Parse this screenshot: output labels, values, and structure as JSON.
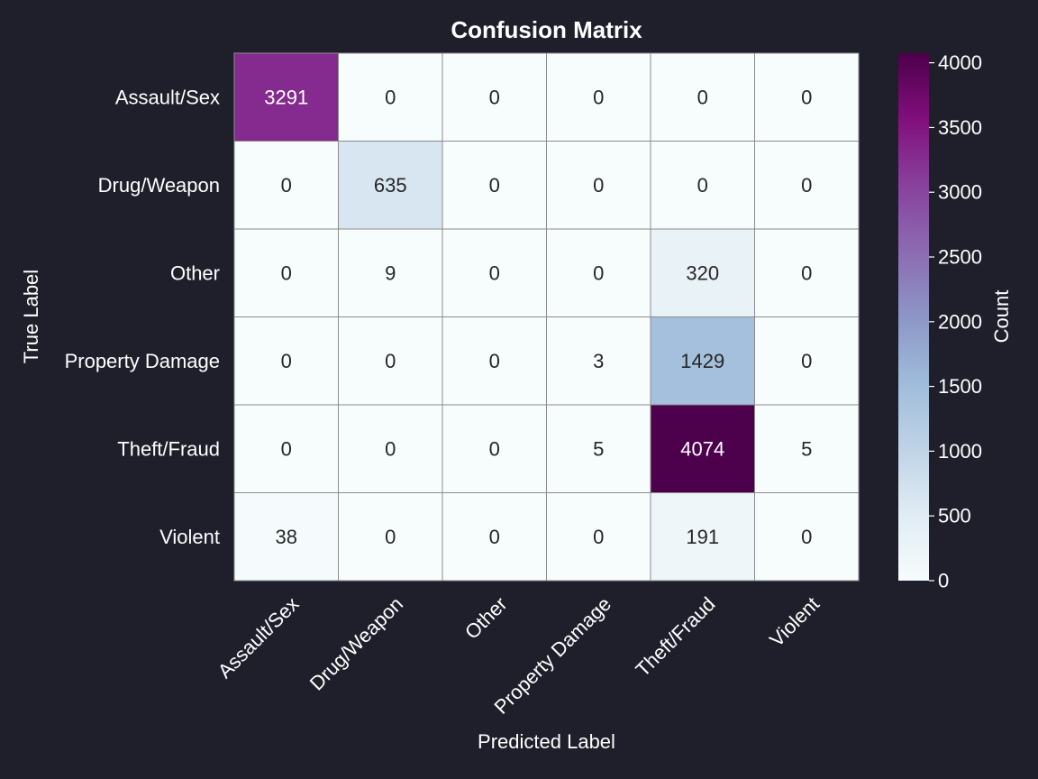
{
  "chart_data": {
    "type": "heatmap",
    "title": "Confusion Matrix",
    "xlabel": "Predicted Label",
    "ylabel": "True Label",
    "x_categories": [
      "Assault/Sex",
      "Drug/Weapon",
      "Other",
      "Property Damage",
      "Theft/Fraud",
      "Violent"
    ],
    "y_categories": [
      "Assault/Sex",
      "Drug/Weapon",
      "Other",
      "Property Damage",
      "Theft/Fraud",
      "Violent"
    ],
    "values": [
      [
        3291,
        0,
        0,
        0,
        0,
        0
      ],
      [
        0,
        635,
        0,
        0,
        0,
        0
      ],
      [
        0,
        9,
        0,
        0,
        320,
        0
      ],
      [
        0,
        0,
        0,
        3,
        1429,
        0
      ],
      [
        0,
        0,
        0,
        5,
        4074,
        5
      ],
      [
        38,
        0,
        0,
        0,
        191,
        0
      ]
    ],
    "colorbar": {
      "label": "Count",
      "range": [
        0,
        4074
      ],
      "ticks": [
        0,
        500,
        1000,
        1500,
        2000,
        2500,
        3000,
        3500,
        4000
      ],
      "colormap": "BuPu"
    },
    "colors": {
      "background": "#1f1f2c",
      "text_light": "#ffffff",
      "text_dark": "#262626",
      "cell_border": "#8c8c8c"
    }
  }
}
